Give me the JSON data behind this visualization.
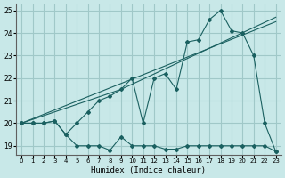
{
  "xlabel": "Humidex (Indice chaleur)",
  "ylabel": "",
  "bg_color": "#c8e8e8",
  "grid_color": "#a0c8c8",
  "line_color": "#1a6060",
  "xlim": [
    -0.5,
    23.5
  ],
  "ylim": [
    18.6,
    25.3
  ],
  "yticks": [
    19,
    20,
    21,
    22,
    23,
    24,
    25
  ],
  "xticks": [
    0,
    1,
    2,
    3,
    4,
    5,
    6,
    7,
    8,
    9,
    10,
    11,
    12,
    13,
    14,
    15,
    16,
    17,
    18,
    19,
    20,
    21,
    22,
    23
  ],
  "series1_x": [
    0,
    1,
    2,
    3,
    4,
    5,
    6,
    7,
    8,
    9,
    10,
    11,
    12,
    13,
    14,
    15,
    16,
    17,
    18,
    19,
    20,
    21,
    22,
    23
  ],
  "series1_y": [
    20.0,
    20.0,
    20.0,
    20.1,
    19.5,
    19.0,
    19.0,
    19.0,
    18.8,
    19.4,
    19.0,
    19.0,
    19.0,
    18.85,
    18.85,
    19.0,
    19.0,
    19.0,
    19.0,
    19.0,
    19.0,
    19.0,
    19.0,
    18.75
  ],
  "series2_x": [
    0,
    1,
    2,
    3,
    4,
    5,
    6,
    7,
    8,
    9,
    10,
    11,
    12,
    13,
    14,
    15,
    16,
    17,
    18,
    19,
    20,
    21,
    22,
    23
  ],
  "series2_y": [
    20.0,
    20.0,
    20.0,
    20.1,
    19.5,
    20.0,
    20.5,
    21.0,
    21.2,
    21.5,
    22.0,
    20.0,
    22.0,
    22.2,
    21.5,
    23.6,
    23.7,
    24.6,
    25.0,
    24.1,
    24.0,
    23.0,
    20.0,
    18.75
  ],
  "series3_x": [
    0,
    9,
    23
  ],
  "series3_y": [
    20.0,
    21.5,
    24.7
  ],
  "series4_x": [
    0,
    23
  ],
  "series4_y": [
    20.0,
    24.5
  ]
}
